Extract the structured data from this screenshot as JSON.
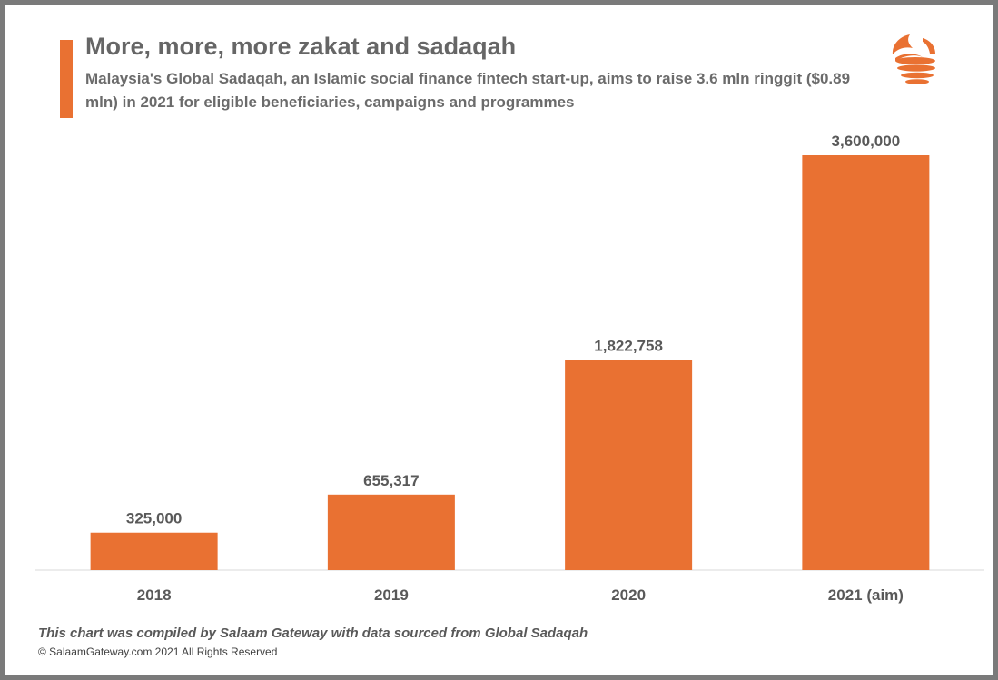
{
  "header": {
    "title": "More, more, more zakat and sadaqah",
    "subtitle": "Malaysia's Global Sadaqah, an Islamic social finance fintech start-up, aims to raise 3.6 mln ringgit ($0.89 mln) in 2021 for eligible beneficiaries, campaigns and programmes"
  },
  "logo": {
    "icon": "salaam-gateway-logo-icon"
  },
  "colors": {
    "accent": "#E97132",
    "text": "#595959",
    "axis": "#d9d9d9"
  },
  "chart_data": {
    "type": "bar",
    "categories": [
      "2018",
      "2019",
      "2020",
      "2021 (aim)"
    ],
    "values": [
      325000,
      655317,
      1822758,
      3600000
    ],
    "value_labels": [
      "325,000",
      "655,317",
      "1,822,758",
      "3,600,000"
    ],
    "title": "More, more, more zakat and sadaqah",
    "xlabel": "",
    "ylabel": "",
    "ylim": [
      0,
      3600000
    ],
    "grid": false,
    "legend": "none"
  },
  "footer": {
    "source": "This chart was compiled by Salaam Gateway with data sourced from Global Sadaqah",
    "copyright": "© SalaamGateway.com 2021 All Rights Reserved"
  }
}
